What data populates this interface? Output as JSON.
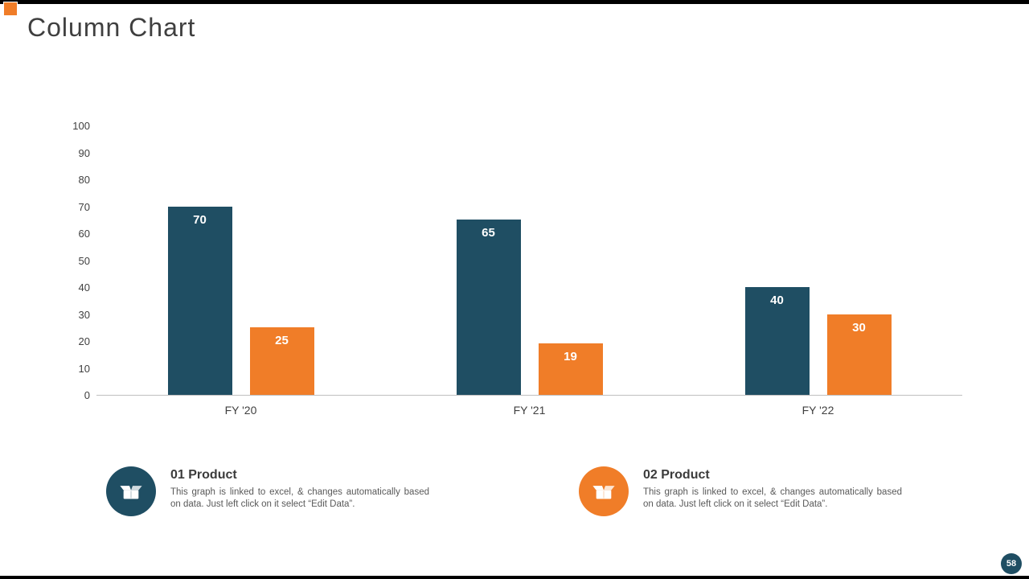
{
  "slide": {
    "title": "Column Chart",
    "page_number": "58"
  },
  "chart_data": {
    "type": "bar",
    "categories": [
      "FY '20",
      "FY '21",
      "FY '22"
    ],
    "series": [
      {
        "name": "01 Product",
        "color": "#1F4E63",
        "values": [
          70,
          65,
          40
        ]
      },
      {
        "name": "02 Product",
        "color": "#F07D28",
        "values": [
          25,
          19,
          30
        ]
      }
    ],
    "ylim": [
      0,
      100
    ],
    "ytick_step": 10,
    "grid": false,
    "bar_value_labels": true,
    "legend_position": "below"
  },
  "callouts": [
    {
      "title": "01 Product",
      "description": "This graph is linked to excel, & changes automatically based on data. Just left click on it select “Edit Data”.",
      "color": "#1F4E63",
      "icon": "open-box-icon"
    },
    {
      "title": "02 Product",
      "description": "This graph is linked to excel, & changes automatically based on data. Just left click on it select “Edit Data”.",
      "color": "#F07D28",
      "icon": "open-box-icon"
    }
  ],
  "colors": {
    "accent_navy": "#1F4E63",
    "accent_orange": "#F07D28",
    "title_text": "#3F3F3F",
    "body_text": "#595959",
    "axis_line": "#BFBFBF",
    "top_bottom_bars": "#000000"
  }
}
